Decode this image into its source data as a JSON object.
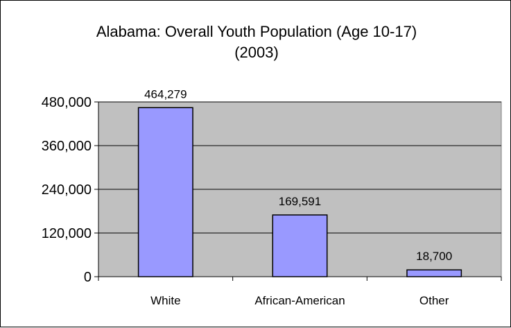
{
  "chart_data": {
    "type": "bar",
    "title": "Alabama:  Overall Youth Population (Age 10-17)",
    "subtitle": "(2003)",
    "categories": [
      "White",
      "African-American",
      "Other"
    ],
    "values": [
      464279,
      169591,
      18700
    ],
    "data_labels": [
      "464,279",
      "169,591",
      "18,700"
    ],
    "y_ticks": [
      0,
      120000,
      240000,
      360000,
      480000
    ],
    "y_tick_labels": [
      "0",
      "120,000",
      "240,000",
      "360,000",
      "480,000"
    ],
    "ylim": [
      0,
      480000
    ],
    "xlabel": "",
    "ylabel": "",
    "grid": true,
    "legend": "none",
    "colors": {
      "bar_fill": "#9999ff",
      "bar_stroke": "#000000",
      "plot_bg": "#c0c0c0",
      "gridline": "#000000"
    }
  }
}
